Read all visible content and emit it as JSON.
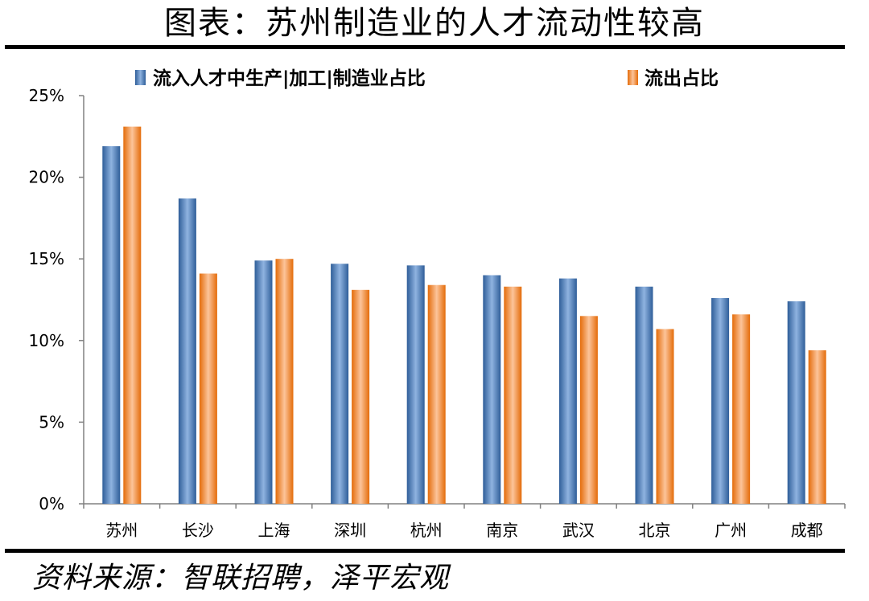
{
  "header": {
    "title": "图表：苏州制造业的人才流动性较高"
  },
  "footer": {
    "source": "资料来源：智联招聘，泽平宏观"
  },
  "colors": {
    "series1": "#4F81BD",
    "series2": "#F79646"
  },
  "chart_data": {
    "type": "bar",
    "title": "图表：苏州制造业的人才流动性较高",
    "categories": [
      "苏州",
      "长沙",
      "上海",
      "深圳",
      "杭州",
      "南京",
      "武汉",
      "北京",
      "广州",
      "成都"
    ],
    "series": [
      {
        "name": "流入人才中生产|加工|制造业占比",
        "values": [
          21.9,
          18.7,
          14.9,
          14.7,
          14.6,
          14.0,
          13.8,
          13.3,
          12.6,
          12.4
        ]
      },
      {
        "name": "流出占比",
        "values": [
          23.1,
          14.1,
          15.0,
          13.1,
          13.4,
          13.3,
          11.5,
          10.7,
          11.6,
          9.4
        ]
      }
    ],
    "yticks": [
      "0%",
      "5%",
      "10%",
      "15%",
      "20%",
      "25%"
    ],
    "ylim": [
      0,
      25
    ],
    "xlabel": "",
    "ylabel": "",
    "legend": "top",
    "grid": false
  }
}
